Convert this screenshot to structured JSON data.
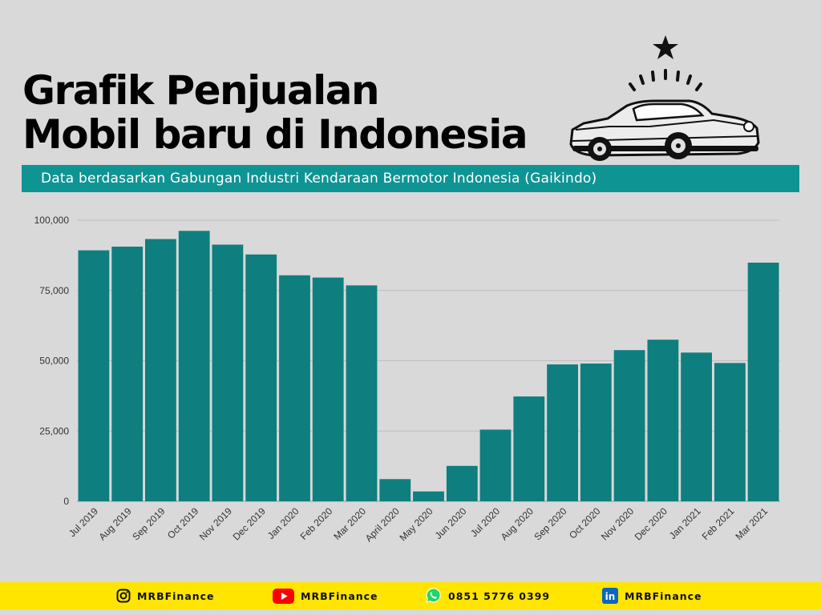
{
  "title_line1": "Grafik Penjualan",
  "title_line2": "Mobil baru di Indonesia",
  "subtitle": "Data berdasarkan  Gabungan Industri Kendaraan Bermotor Indonesia (Gaikindo)",
  "colors": {
    "bar": "#0f7e7e",
    "banner": "#0f9494",
    "footer": "#ffe500",
    "background": "#d9d9d9"
  },
  "chart_data": {
    "type": "bar",
    "categories": [
      "Jul 2019",
      "Aug 2019",
      "Sep 2019",
      "Oct 2019",
      "Nov 2019",
      "Dec 2019",
      "Jan 2020",
      "Feb 2020",
      "Mar 2020",
      "April 2020",
      "May 2020",
      "Jun 2020",
      "Jul 2020",
      "Aug 2020",
      "Sep 2020",
      "Oct 2020",
      "Nov 2020",
      "Dec 2020",
      "Jan 2021",
      "Feb 2021",
      "Mar 2021"
    ],
    "values": [
      89300,
      90600,
      93300,
      96200,
      91300,
      87800,
      80400,
      79600,
      76800,
      7900,
      3500,
      12600,
      25500,
      37300,
      48700,
      49000,
      53800,
      57500,
      52900,
      49200,
      84900
    ],
    "ylim": [
      0,
      100000
    ],
    "yticks": [
      0,
      25000,
      50000,
      75000,
      100000
    ],
    "ytick_labels": [
      "0",
      "25,000",
      "50,000",
      "75,000",
      "100,000"
    ],
    "grid": true
  },
  "footer": {
    "instagram": {
      "icon": "instagram-icon",
      "label": "MRBFinance"
    },
    "youtube": {
      "icon": "youtube-icon",
      "label": "MRBFinance"
    },
    "whatsapp": {
      "icon": "whatsapp-icon",
      "label": "0851 5776 0399"
    },
    "linkedin": {
      "icon": "linkedin-icon",
      "label": "MRBFinance"
    }
  }
}
